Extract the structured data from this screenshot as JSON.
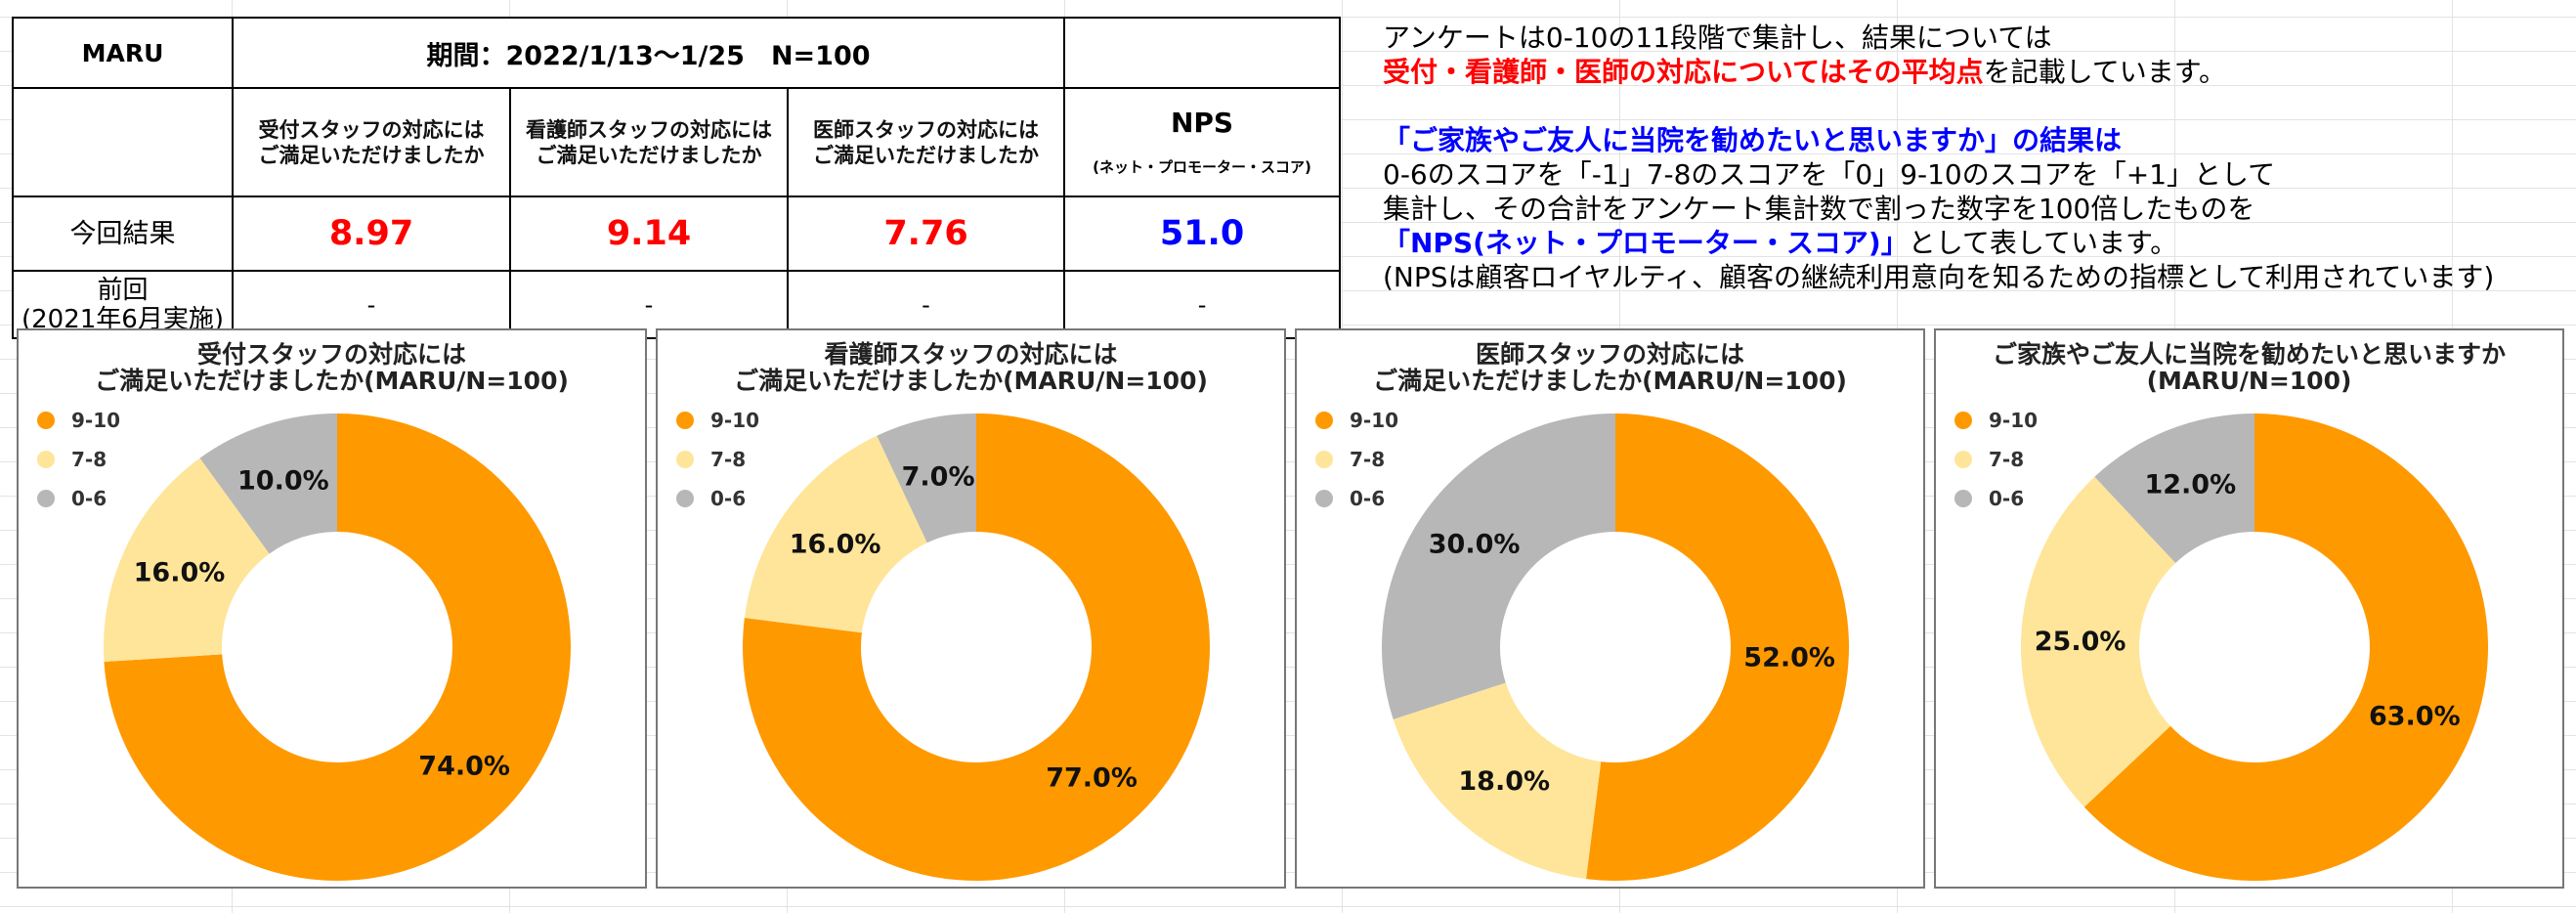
{
  "table": {
    "brand": "MARU",
    "period": "期間：2022/1/13〜1/25　N=100",
    "questions": [
      "受付スタッフの対応には\nご満足いただけましたか",
      "看護師スタッフの対応には\nご満足いただけましたか",
      "医師スタッフの対応には\nご満足いただけましたか"
    ],
    "nps_label": "NPS",
    "nps_sub": "(ネット・プロモーター・スコア)",
    "current": {
      "label": "今回結果",
      "values": [
        "8.97",
        "9.14",
        "7.76",
        "51.0"
      ]
    },
    "previous": {
      "label": "前回\n(2021年6月実施)",
      "values": [
        "-",
        "-",
        "-",
        "-"
      ]
    }
  },
  "colors": {
    "average": "#FF0000",
    "nps": "#0000FF"
  },
  "notes": {
    "line1": "アンケートは0-10の11段階で集計し、結果については",
    "line2_emphasis": "受付・看護師・医師の対応についてはその平均点",
    "line2_rest": "を記載しています。",
    "line4_emphasis": "「ご家族やご友人に当院を勧めたいと思いますか」の結果は",
    "line5": "0-6のスコアを「-1」7-8のスコアを「0」9-10のスコアを「+1」として",
    "line6": "集計し、その合計をアンケート集計数で割った数字を100倍したものを",
    "line7_emphasis": "「NPS(ネット・プロモーター・スコア)」",
    "line7_rest": "として表しています。",
    "line8": "(NPSは顧客ロイヤルティ、顧客の継続利用意向を知るための指標として利用されています)"
  },
  "chart_data": [
    {
      "type": "pie",
      "donut": true,
      "title": "受付スタッフの対応には\nご満足いただけましたか(MARU/N=100)",
      "categories": [
        "9-10",
        "7-8",
        "0-6"
      ],
      "values": [
        74,
        16,
        10
      ],
      "data_labels": [
        "74.0%",
        "16.0%",
        "10.0%"
      ],
      "colors": [
        "#FF9900",
        "#FFE599",
        "#B7B7B7"
      ],
      "legend": "top-left"
    },
    {
      "type": "pie",
      "donut": true,
      "title": "看護師スタッフの対応には\nご満足いただけましたか(MARU/N=100)",
      "categories": [
        "9-10",
        "7-8",
        "0-6"
      ],
      "values": [
        77,
        16,
        7
      ],
      "data_labels": [
        "77.0%",
        "16.0%",
        "7.0%"
      ],
      "colors": [
        "#FF9900",
        "#FFE599",
        "#B7B7B7"
      ],
      "legend": "top-left"
    },
    {
      "type": "pie",
      "donut": true,
      "title": "医師スタッフの対応には\nご満足いただけましたか(MARU/N=100)",
      "categories": [
        "9-10",
        "7-8",
        "0-6"
      ],
      "values": [
        52,
        18,
        30
      ],
      "data_labels": [
        "52.0%",
        "18.0%",
        "30.0%"
      ],
      "colors": [
        "#FF9900",
        "#FFE599",
        "#B7B7B7"
      ],
      "legend": "top-left"
    },
    {
      "type": "pie",
      "donut": true,
      "title": "ご家族やご友人に当院を勧めたいと思いますか\n(MARU/N=100)",
      "categories": [
        "9-10",
        "7-8",
        "0-6"
      ],
      "values": [
        63,
        25,
        12
      ],
      "data_labels": [
        "63.0%",
        "25.0%",
        "12.0%"
      ],
      "colors": [
        "#FF9900",
        "#FFE599",
        "#B7B7B7"
      ],
      "legend": "top-left"
    }
  ]
}
